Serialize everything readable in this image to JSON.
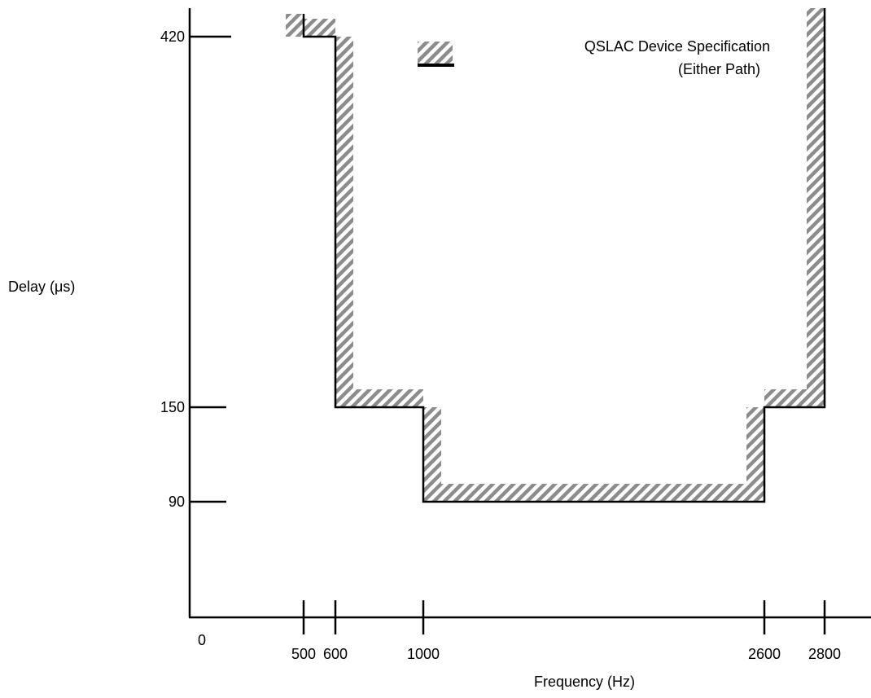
{
  "chart_data": {
    "type": "line",
    "title": "",
    "xlabel": "Frequency (Hz)",
    "ylabel": "Delay (μs)",
    "x_ticks": [
      {
        "value": 0,
        "label": "0"
      },
      {
        "value": 500,
        "label": "500"
      },
      {
        "value": 600,
        "label": "600"
      },
      {
        "value": 1000,
        "label": "1000"
      },
      {
        "value": 2600,
        "label": "2600"
      },
      {
        "value": 2800,
        "label": "2800"
      }
    ],
    "y_ticks": [
      {
        "value": 90,
        "label": "90"
      },
      {
        "value": 150,
        "label": "150"
      },
      {
        "value": 420,
        "label": "420"
      }
    ],
    "series": [
      {
        "name": "QSLAC Device Specification (Either Path)",
        "x": [
          500,
          500,
          600,
          600,
          1000,
          1000,
          2600,
          2600,
          2800,
          2800
        ],
        "y": [
          436,
          420,
          420,
          150,
          150,
          90,
          90,
          150,
          150,
          440
        ]
      }
    ],
    "legend": {
      "position": "top-right",
      "lines": [
        "QSLAC Device Specification",
        "(Either Path)"
      ]
    },
    "grid": false,
    "style": {
      "line_color": "#000000",
      "hatch_color": "#8c8c8c"
    }
  }
}
